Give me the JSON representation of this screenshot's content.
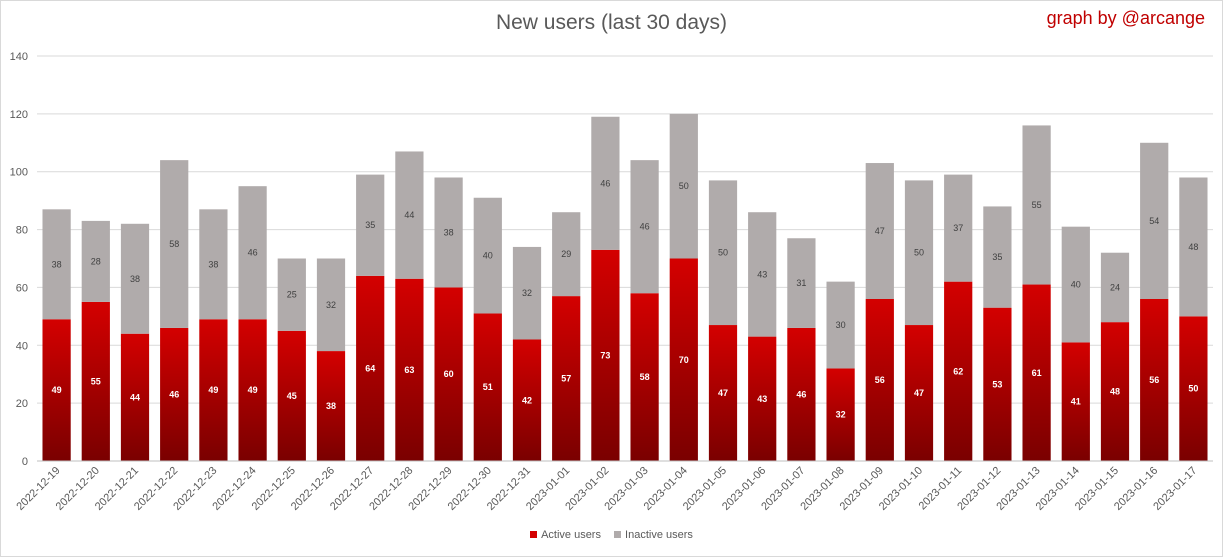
{
  "title": "New users (last 30 days)",
  "credit": "graph by @arcange",
  "colors": {
    "active_top": "#d40000",
    "active_bottom": "#7a0000",
    "inactive": "#b0abab",
    "grid": "#d9d9d9",
    "credit": "#c00000"
  },
  "chart_data": {
    "type": "bar",
    "stacked": true,
    "categories": [
      "2022-12-19",
      "2022-12-20",
      "2022-12-21",
      "2022-12-22",
      "2022-12-23",
      "2022-12-24",
      "2022-12-25",
      "2022-12-26",
      "2022-12-27",
      "2022-12-28",
      "2022-12-29",
      "2022-12-30",
      "2022-12-31",
      "2023-01-01",
      "2023-01-02",
      "2023-01-03",
      "2023-01-04",
      "2023-01-05",
      "2023-01-06",
      "2023-01-07",
      "2023-01-08",
      "2023-01-09",
      "2023-01-10",
      "2023-01-11",
      "2023-01-12",
      "2023-01-13",
      "2023-01-14",
      "2023-01-15",
      "2023-01-16",
      "2023-01-17"
    ],
    "series": [
      {
        "name": "Active users",
        "values": [
          49,
          55,
          44,
          46,
          49,
          49,
          45,
          38,
          64,
          63,
          60,
          51,
          42,
          57,
          73,
          58,
          70,
          47,
          43,
          46,
          32,
          56,
          47,
          62,
          53,
          61,
          41,
          48,
          56,
          50
        ]
      },
      {
        "name": "Inactive users",
        "values": [
          38,
          28,
          38,
          58,
          38,
          46,
          25,
          32,
          35,
          44,
          38,
          40,
          32,
          29,
          46,
          46,
          50,
          50,
          43,
          31,
          30,
          47,
          50,
          37,
          35,
          55,
          40,
          24,
          54,
          48
        ]
      }
    ],
    "ylim": [
      0,
      140
    ],
    "yticks": [
      "0",
      "20",
      "40",
      "60",
      "80",
      "100",
      "120",
      "140"
    ],
    "grid": true,
    "legend_position": "bottom"
  }
}
